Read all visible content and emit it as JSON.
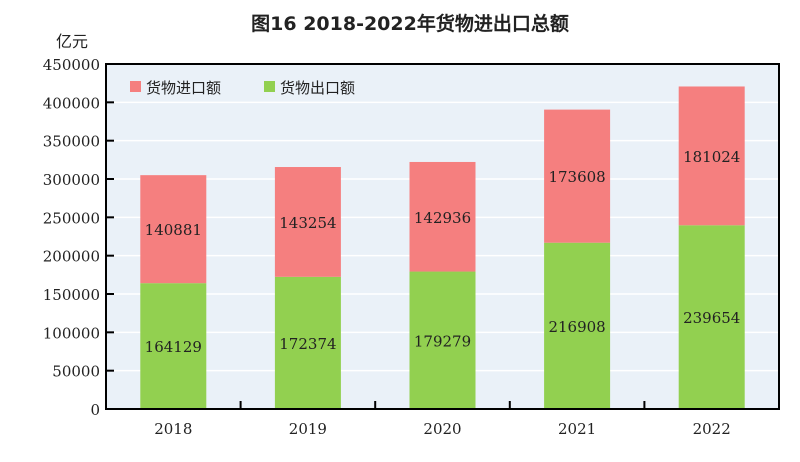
{
  "chart_data": {
    "type": "bar",
    "stacked": true,
    "title": "图16   2018-2022年货物进出口总额",
    "ylabel": "亿元",
    "xlabel": "",
    "categories": [
      "2018",
      "2019",
      "2020",
      "2021",
      "2022"
    ],
    "ylim": [
      0,
      450000
    ],
    "yticks": [
      "0",
      "50000",
      "100000",
      "150000",
      "200000",
      "250000",
      "300000",
      "350000",
      "400000",
      "450000"
    ],
    "grid": true,
    "legend_position": "top-left",
    "series": [
      {
        "name": "货物出口额",
        "color": "#92d050",
        "values": [
          164129,
          172374,
          179279,
          216908,
          239654
        ]
      },
      {
        "name": "货物进口额",
        "color": "#f57f7f",
        "values": [
          140881,
          143254,
          142936,
          173608,
          181024
        ]
      }
    ],
    "legend_order": [
      1,
      0
    ],
    "plot_background": "#eaf1f8"
  }
}
